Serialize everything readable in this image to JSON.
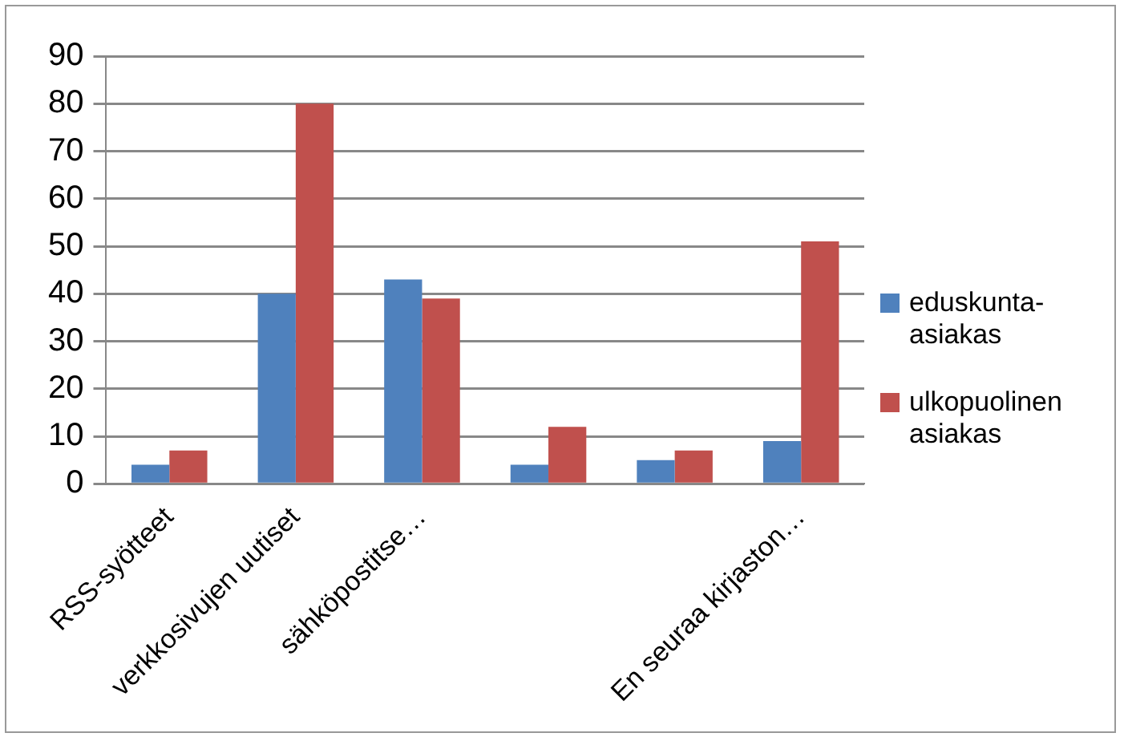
{
  "chart_data": {
    "type": "bar",
    "categories": [
      "RSS-syötteet",
      "verkkosivujen uutiset",
      "sähköpostitse…",
      null,
      null,
      "En seuraa kirjaston…"
    ],
    "series": [
      {
        "name": "eduskunta-asiakas",
        "color": "#4f81bd",
        "values": [
          4,
          40,
          43,
          4,
          5,
          9
        ]
      },
      {
        "name": "ulkopuolinen asiakas",
        "color": "#c0504d",
        "values": [
          7,
          80,
          39,
          12,
          7,
          51
        ]
      }
    ],
    "ylim": [
      0,
      90
    ],
    "yticks": [
      0,
      10,
      20,
      30,
      40,
      50,
      60,
      70,
      80,
      90
    ],
    "grid": "y",
    "legend": "right"
  }
}
